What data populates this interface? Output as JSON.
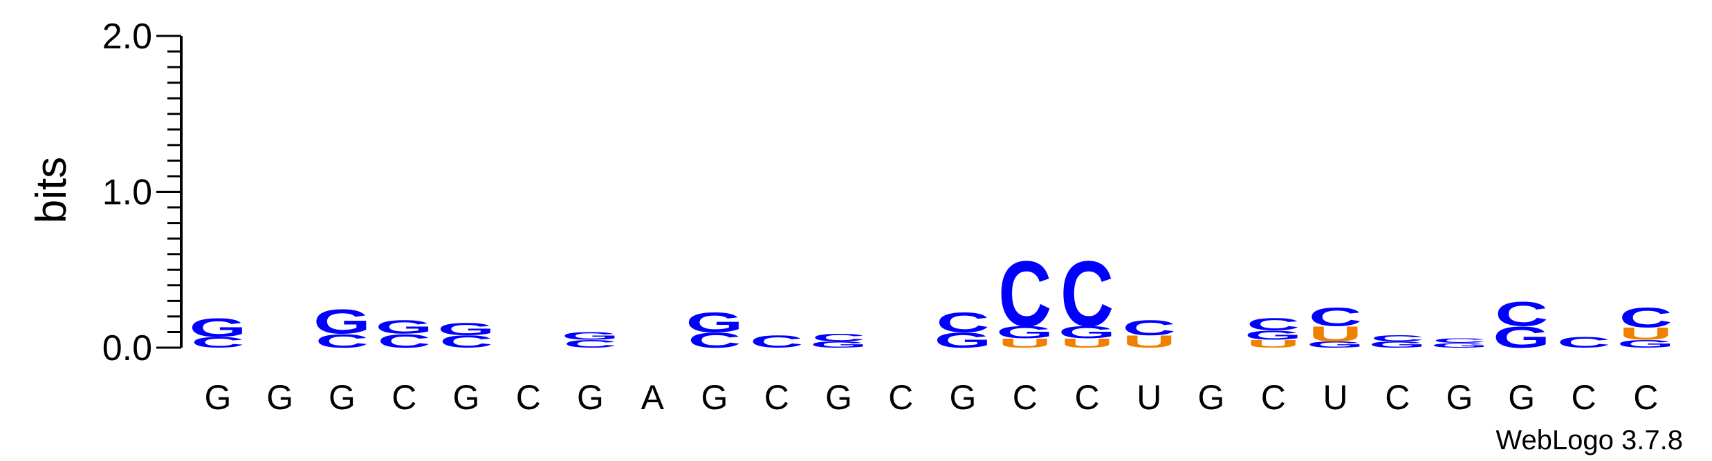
{
  "chart_data": {
    "type": "sequence-logo",
    "ylabel": "bits",
    "ylim": [
      0,
      2.0
    ],
    "yticks": [
      "0.0",
      "1.0",
      "2.0"
    ],
    "colors": {
      "A": "#f08000",
      "C": "#0000ff",
      "G": "#0000ff",
      "U": "#f08000"
    },
    "positions": [
      {
        "label": "G",
        "stack": [
          {
            "letter": "C",
            "height": 0.07
          },
          {
            "letter": "G",
            "height": 0.12
          }
        ]
      },
      {
        "label": "G",
        "stack": []
      },
      {
        "label": "G",
        "stack": [
          {
            "letter": "C",
            "height": 0.09
          },
          {
            "letter": "G",
            "height": 0.16
          }
        ]
      },
      {
        "label": "C",
        "stack": [
          {
            "letter": "C",
            "height": 0.09
          },
          {
            "letter": "G",
            "height": 0.09
          }
        ]
      },
      {
        "label": "G",
        "stack": [
          {
            "letter": "C",
            "height": 0.08
          },
          {
            "letter": "G",
            "height": 0.08
          }
        ]
      },
      {
        "label": "C",
        "stack": []
      },
      {
        "label": "G",
        "stack": [
          {
            "letter": "C",
            "height": 0.05
          },
          {
            "letter": "G",
            "height": 0.05
          }
        ]
      },
      {
        "label": "A",
        "stack": []
      },
      {
        "label": "G",
        "stack": [
          {
            "letter": "C",
            "height": 0.1
          },
          {
            "letter": "G",
            "height": 0.13
          }
        ]
      },
      {
        "label": "C",
        "stack": [
          {
            "letter": "C",
            "height": 0.08
          }
        ]
      },
      {
        "label": "G",
        "stack": [
          {
            "letter": "G",
            "height": 0.04
          },
          {
            "letter": "C",
            "height": 0.05
          }
        ]
      },
      {
        "label": "C",
        "stack": []
      },
      {
        "label": "G",
        "stack": [
          {
            "letter": "G",
            "height": 0.1
          },
          {
            "letter": "C",
            "height": 0.13
          }
        ]
      },
      {
        "label": "C",
        "stack": [
          {
            "letter": "U",
            "height": 0.06
          },
          {
            "letter": "G",
            "height": 0.08
          },
          {
            "letter": "C",
            "height": 0.43
          }
        ]
      },
      {
        "label": "C",
        "stack": [
          {
            "letter": "U",
            "height": 0.06
          },
          {
            "letter": "G",
            "height": 0.08
          },
          {
            "letter": "C",
            "height": 0.43
          }
        ]
      },
      {
        "label": "U",
        "stack": [
          {
            "letter": "U",
            "height": 0.08
          },
          {
            "letter": "C",
            "height": 0.1
          }
        ]
      },
      {
        "label": "G",
        "stack": []
      },
      {
        "label": "C",
        "stack": [
          {
            "letter": "U",
            "height": 0.05
          },
          {
            "letter": "G",
            "height": 0.06
          },
          {
            "letter": "C",
            "height": 0.08
          }
        ]
      },
      {
        "label": "U",
        "stack": [
          {
            "letter": "G",
            "height": 0.04
          },
          {
            "letter": "U",
            "height": 0.1
          },
          {
            "letter": "C",
            "height": 0.12
          }
        ]
      },
      {
        "label": "C",
        "stack": [
          {
            "letter": "G",
            "height": 0.04
          },
          {
            "letter": "C",
            "height": 0.04
          }
        ]
      },
      {
        "label": "G",
        "stack": [
          {
            "letter": "G",
            "height": 0.03
          },
          {
            "letter": "C",
            "height": 0.03
          }
        ]
      },
      {
        "label": "G",
        "stack": [
          {
            "letter": "G",
            "height": 0.14
          },
          {
            "letter": "C",
            "height": 0.16
          }
        ]
      },
      {
        "label": "C",
        "stack": [
          {
            "letter": "C",
            "height": 0.07
          }
        ]
      },
      {
        "label": "C",
        "stack": [
          {
            "letter": "G",
            "height": 0.05
          },
          {
            "letter": "U",
            "height": 0.08
          },
          {
            "letter": "C",
            "height": 0.13
          }
        ]
      }
    ]
  },
  "credit": "WebLogo 3.7.8"
}
